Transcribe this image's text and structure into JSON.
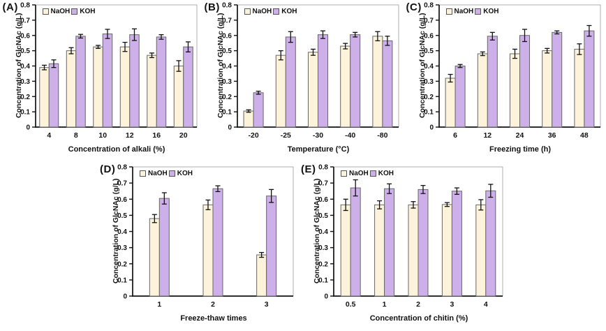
{
  "figure": {
    "background": "#ffffff",
    "series_colors": {
      "NaOH": "#FCF3DA",
      "KOH": "#CDAFEA"
    },
    "bar_border": "#676767",
    "axis_color": "#111111",
    "frame_color": "#999999",
    "error_bar_color": "#111111",
    "legend_labels": [
      "NaOH",
      "KOH"
    ]
  },
  "chart_data": [
    {
      "type": "bar",
      "panel": "(A)",
      "xlabel": "Concentration of alkali (%)",
      "ylabel": "Concentration of GlcNAc (g/L)",
      "ylim": [
        0,
        0.8
      ],
      "y_ticks": [
        "0",
        "0.1",
        "0.2",
        "0.3",
        "0.4",
        "0.5",
        "0.6",
        "0.7",
        "0.8"
      ],
      "grid": false,
      "legend_position": "top-left",
      "categories": [
        "4",
        "8",
        "10",
        "12",
        "16",
        "20"
      ],
      "series": [
        {
          "name": "NaOH",
          "values": [
            0.39,
            0.5,
            0.525,
            0.525,
            0.47,
            0.4
          ],
          "errors": [
            0.015,
            0.02,
            0.01,
            0.03,
            0.015,
            0.035
          ]
        },
        {
          "name": "KOH",
          "values": [
            0.415,
            0.595,
            0.61,
            0.605,
            0.59,
            0.525
          ],
          "errors": [
            0.025,
            0.012,
            0.03,
            0.038,
            0.015,
            0.033
          ]
        }
      ]
    },
    {
      "type": "bar",
      "panel": "(B)",
      "xlabel": "Temperature (°C)",
      "ylabel": "Concentration of GlcNAc (g/L)",
      "ylim": [
        0,
        0.8
      ],
      "y_ticks": [
        "0",
        "0.1",
        "0.2",
        "0.3",
        "0.4",
        "0.5",
        "0.6",
        "0.7",
        "0.8"
      ],
      "grid": false,
      "legend_position": "top-left",
      "categories": [
        "-20",
        "-25",
        "-30",
        "-40",
        "-80"
      ],
      "series": [
        {
          "name": "NaOH",
          "values": [
            0.105,
            0.47,
            0.49,
            0.53,
            0.595
          ],
          "errors": [
            0.008,
            0.03,
            0.02,
            0.018,
            0.03
          ]
        },
        {
          "name": "KOH",
          "values": [
            0.225,
            0.59,
            0.605,
            0.605,
            0.565
          ],
          "errors": [
            0.01,
            0.035,
            0.025,
            0.015,
            0.03
          ]
        }
      ]
    },
    {
      "type": "bar",
      "panel": "(C)",
      "xlabel": "Freezing time (h)",
      "ylabel": "Concentration of GlcNAc (g/L)",
      "ylim": [
        0,
        0.8
      ],
      "y_ticks": [
        "0",
        "0.1",
        "0.2",
        "0.3",
        "0.4",
        "0.5",
        "0.6",
        "0.7",
        "0.8"
      ],
      "grid": false,
      "legend_position": "top-left",
      "categories": [
        "6",
        "12",
        "24",
        "36",
        "48"
      ],
      "series": [
        {
          "name": "NaOH",
          "values": [
            0.32,
            0.48,
            0.48,
            0.5,
            0.51
          ],
          "errors": [
            0.025,
            0.012,
            0.03,
            0.015,
            0.035
          ]
        },
        {
          "name": "KOH",
          "values": [
            0.4,
            0.595,
            0.6,
            0.62,
            0.63
          ],
          "errors": [
            0.01,
            0.025,
            0.04,
            0.01,
            0.035
          ]
        }
      ]
    },
    {
      "type": "bar",
      "panel": "(D)",
      "xlabel": "Freeze-thaw times",
      "ylabel": "Concentration of GlcNAc (g/L)",
      "ylim": [
        0,
        0.8
      ],
      "y_ticks": [
        "0",
        "0.1",
        "0.2",
        "0.3",
        "0.4",
        "0.5",
        "0.6",
        "0.7",
        "0.8"
      ],
      "grid": false,
      "legend_position": "top-left",
      "categories": [
        "1",
        "2",
        "3"
      ],
      "series": [
        {
          "name": "NaOH",
          "values": [
            0.48,
            0.565,
            0.255
          ],
          "errors": [
            0.025,
            0.03,
            0.015
          ]
        },
        {
          "name": "KOH",
          "values": [
            0.605,
            0.665,
            0.62
          ],
          "errors": [
            0.035,
            0.018,
            0.04
          ]
        }
      ]
    },
    {
      "type": "bar",
      "panel": "(E)",
      "xlabel": "Concentration of chitin (%)",
      "ylabel": "Concentration of GlcNAc (g/L)",
      "ylim": [
        0,
        0.8
      ],
      "y_ticks": [
        "0",
        "0.1",
        "0.2",
        "0.3",
        "0.4",
        "0.5",
        "0.6",
        "0.7",
        "0.8"
      ],
      "grid": false,
      "legend_position": "top-left",
      "categories": [
        "0.5",
        "1",
        "2",
        "3",
        "4"
      ],
      "series": [
        {
          "name": "NaOH",
          "values": [
            0.565,
            0.565,
            0.565,
            0.567,
            0.565
          ],
          "errors": [
            0.035,
            0.025,
            0.02,
            0.012,
            0.032
          ]
        },
        {
          "name": "KOH",
          "values": [
            0.67,
            0.665,
            0.66,
            0.65,
            0.652
          ],
          "errors": [
            0.05,
            0.03,
            0.025,
            0.02,
            0.04
          ]
        }
      ]
    }
  ]
}
